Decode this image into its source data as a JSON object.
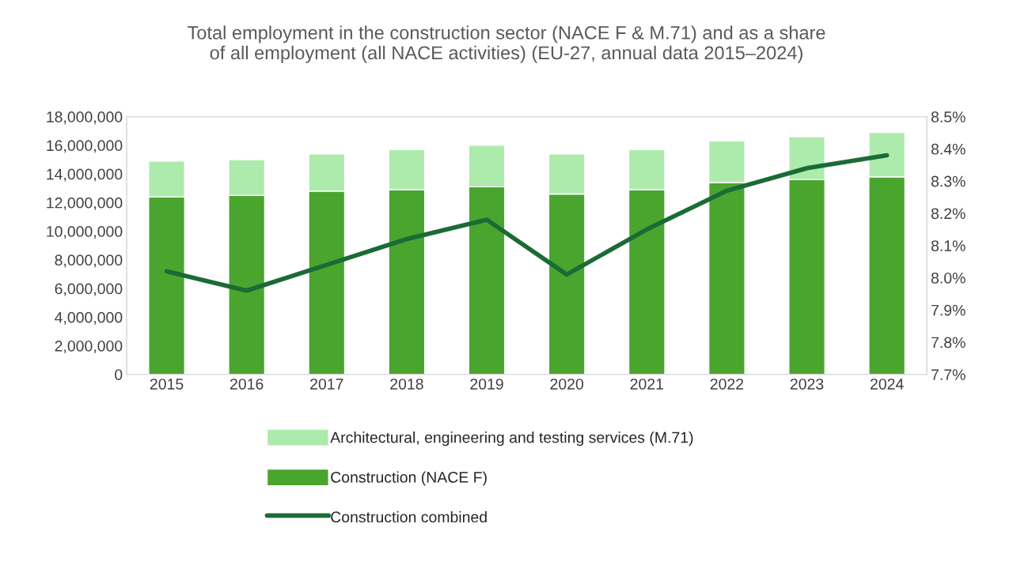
{
  "chart_data": {
    "type": "bar",
    "title": "Total employment in the construction sector (NACE F & M.71) and as a share\nof all employment (all NACE activities) (EU-27, annual data 2015–2024)",
    "categories": [
      "2015",
      "2016",
      "2017",
      "2018",
      "2019",
      "2020",
      "2021",
      "2022",
      "2023",
      "2024"
    ],
    "stacked": true,
    "series": [
      {
        "name": "Construction (NACE F)",
        "color": "#4aa52e",
        "values": [
          12400000,
          12500000,
          12800000,
          12900000,
          13100000,
          12600000,
          12900000,
          13400000,
          13600000,
          13800000
        ]
      },
      {
        "name": "Architectural, engineering and testing services (M.71)",
        "color": "#adebad",
        "values": [
          2500000,
          2500000,
          2600000,
          2800000,
          2900000,
          2800000,
          2800000,
          2900000,
          3000000,
          3100000
        ]
      },
      {
        "name": "Construction combined",
        "type": "line",
        "axis": "y2",
        "color": "#1a6b35",
        "marker": "none",
        "line_style": "solid",
        "values": [
          8.02,
          7.96,
          8.04,
          8.12,
          8.18,
          8.01,
          8.15,
          8.27,
          8.34,
          8.38
        ]
      }
    ],
    "ylim": [
      0,
      18000000
    ],
    "yticks": [
      {
        "value": 0,
        "label": "0"
      },
      {
        "value": 2000000,
        "label": "2,000,000"
      },
      {
        "value": 4000000,
        "label": "4,000,000"
      },
      {
        "value": 6000000,
        "label": "6,000,000"
      },
      {
        "value": 8000000,
        "label": "8,000,000"
      },
      {
        "value": 10000000,
        "label": "10,000,000"
      },
      {
        "value": 12000000,
        "label": "12,000,000"
      },
      {
        "value": 14000000,
        "label": "14,000,000"
      },
      {
        "value": 16000000,
        "label": "16,000,000"
      },
      {
        "value": 18000000,
        "label": "18,000,000"
      }
    ],
    "y2lim": [
      7.7,
      8.5
    ],
    "y2ticks": [
      {
        "value": 7.7,
        "label": "7.7%"
      },
      {
        "value": 7.8,
        "label": "7.8%"
      },
      {
        "value": 7.9,
        "label": "7.9%"
      },
      {
        "value": 8.0,
        "label": "8.0%"
      },
      {
        "value": 8.1,
        "label": "8.1%"
      },
      {
        "value": 8.2,
        "label": "8.2%"
      },
      {
        "value": 8.3,
        "label": "8.3%"
      },
      {
        "value": 8.4,
        "label": "8.4%"
      },
      {
        "value": 8.5,
        "label": "8.5%"
      }
    ],
    "grid": false,
    "legend": "bottom"
  }
}
